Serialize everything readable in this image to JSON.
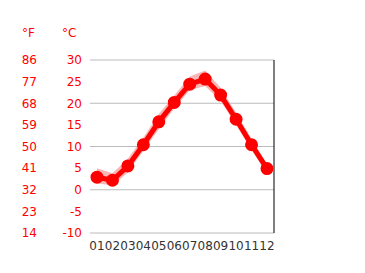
{
  "chart_data": {
    "type": "line",
    "y_label": "°C",
    "y2_label": "°F",
    "categories": [
      "01",
      "02",
      "03",
      "04",
      "05",
      "06",
      "07",
      "08",
      "09",
      "10",
      "11",
      "12"
    ],
    "series": [
      {
        "name": "°C",
        "color": "#ff0000",
        "values": [
          2.9,
          2.2,
          5.5,
          10.4,
          15.7,
          20.2,
          24.4,
          25.6,
          21.9,
          16.3,
          10.4,
          4.9
        ],
        "low": [
          1.5,
          1.0,
          4.0,
          9.0,
          14.0,
          18.8,
          23.0,
          24.0,
          20.5,
          15.0,
          9.2,
          3.6
        ],
        "high": [
          5.0,
          3.8,
          7.2,
          12.0,
          17.5,
          21.8,
          26.2,
          27.6,
          23.6,
          17.8,
          11.8,
          6.0
        ],
        "marker": "circle"
      }
    ],
    "ylim": [
      -10,
      30
    ],
    "yticks": [
      -10,
      -5,
      0,
      5,
      10,
      15,
      20,
      25,
      30
    ],
    "y2lim": [
      14,
      86
    ],
    "y2ticks": [
      14,
      23,
      32,
      41,
      50,
      59,
      68,
      77,
      86
    ],
    "grid": true
  }
}
